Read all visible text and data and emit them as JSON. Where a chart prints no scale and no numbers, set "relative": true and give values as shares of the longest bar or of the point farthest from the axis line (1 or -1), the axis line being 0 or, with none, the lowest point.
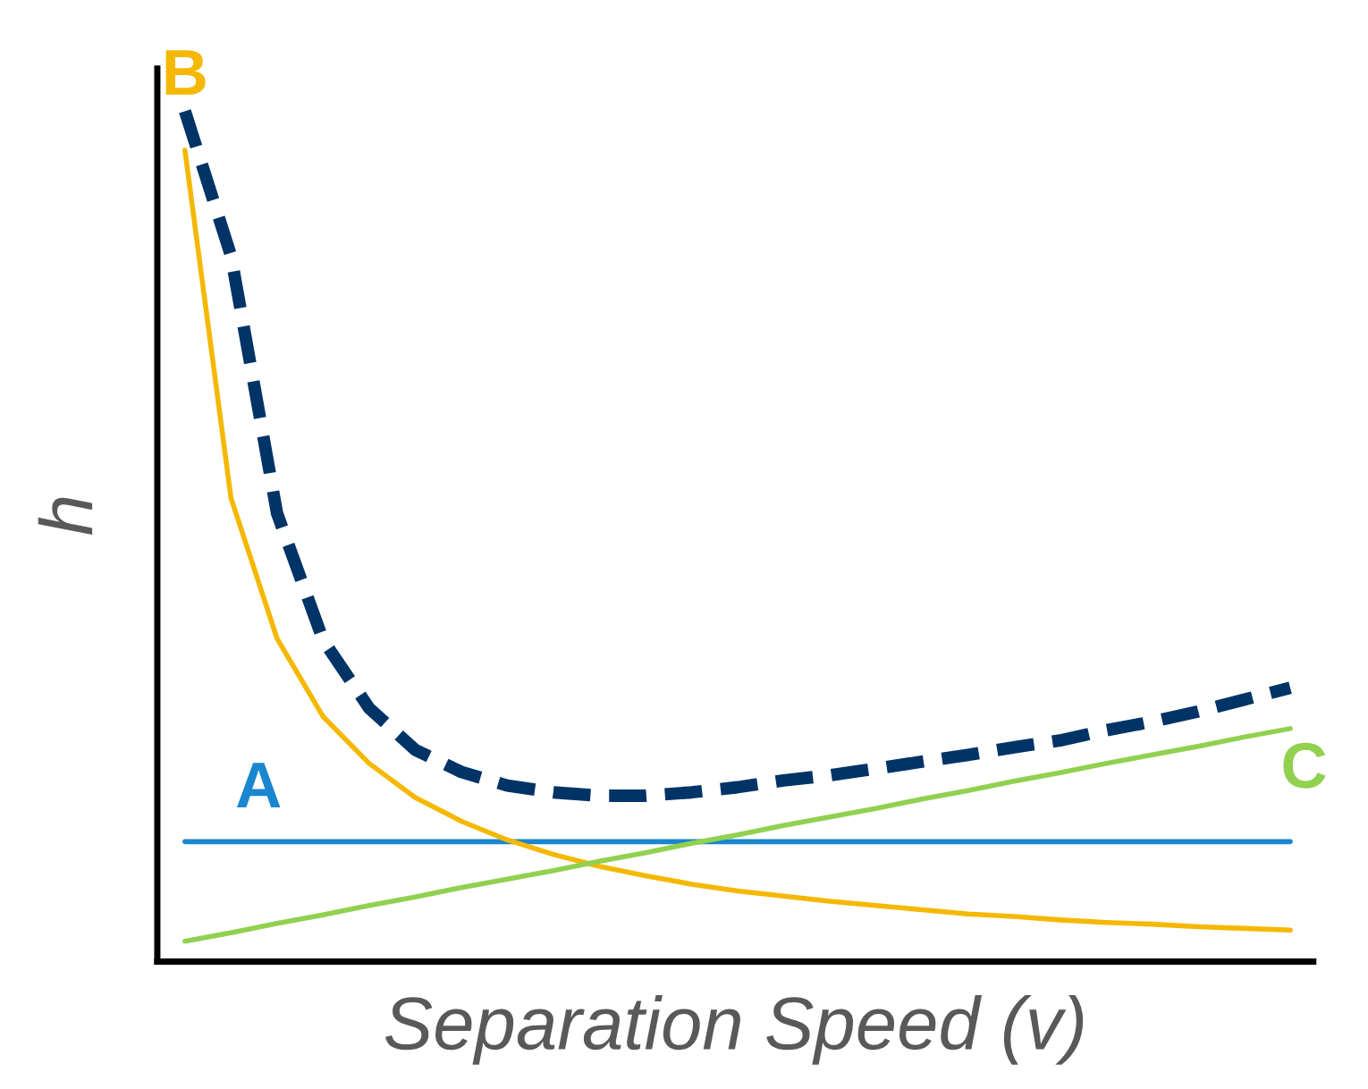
{
  "chart_data": {
    "type": "line",
    "relative": true,
    "xlabel": "Separation Speed (v)",
    "ylabel": "h",
    "legend": false,
    "grid": false,
    "categories": [
      null,
      null,
      null,
      null,
      null,
      null,
      null,
      null,
      null,
      null,
      null,
      null,
      null,
      null,
      null,
      null,
      null,
      null,
      null,
      null,
      null,
      null,
      null,
      null,
      null
    ],
    "series": [
      {
        "name": "A",
        "color": "#1a86d0",
        "values": [
          0.141,
          0.141,
          0.141,
          0.141,
          0.141,
          0.141,
          0.141,
          0.141,
          0.141,
          0.141,
          0.141,
          0.141,
          0.141,
          0.141,
          0.141,
          0.141,
          0.141,
          0.141,
          0.141,
          0.141,
          0.141,
          0.141,
          0.141,
          0.141,
          0.141
        ]
      },
      {
        "name": "B",
        "color": "#f5b800",
        "values": [
          0.954,
          0.545,
          0.38,
          0.288,
          0.233,
          0.193,
          0.165,
          0.143,
          0.126,
          0.112,
          0.101,
          0.091,
          0.083,
          0.077,
          0.071,
          0.066,
          0.061,
          0.056,
          0.053,
          0.049,
          0.046,
          0.044,
          0.041,
          0.039,
          0.037
        ]
      },
      {
        "name": "C",
        "color": "#92d050",
        "values": [
          0.024,
          0.034,
          0.045,
          0.055,
          0.066,
          0.076,
          0.087,
          0.097,
          0.107,
          0.118,
          0.128,
          0.139,
          0.149,
          0.16,
          0.17,
          0.18,
          0.191,
          0.201,
          0.212,
          0.222,
          0.233,
          0.243,
          0.253,
          0.264,
          0.274
        ]
      },
      {
        "color": "#003366",
        "line_style": "dashed",
        "values": [
          1.0,
          0.83,
          0.527,
          0.378,
          0.298,
          0.249,
          0.223,
          0.207,
          0.199,
          0.195,
          0.195,
          0.199,
          0.205,
          0.213,
          0.219,
          0.227,
          0.235,
          0.243,
          0.252,
          0.26,
          0.272,
          0.282,
          0.294,
          0.308,
          0.322
        ]
      }
    ]
  }
}
